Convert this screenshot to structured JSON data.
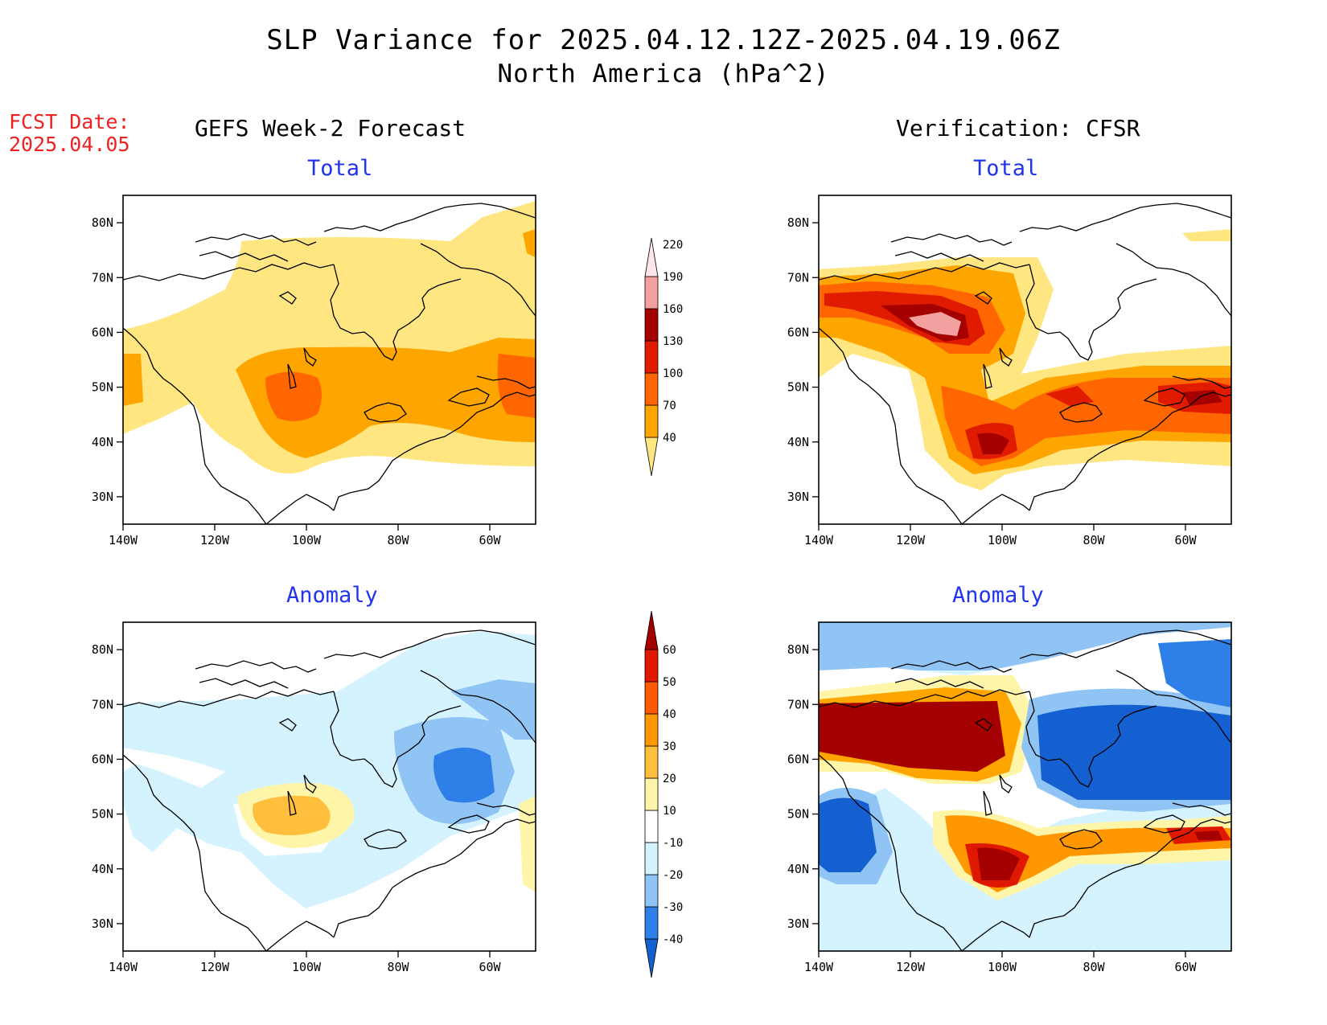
{
  "header": {
    "title_line1": "SLP Variance for 2025.04.12.12Z-2025.04.19.06Z",
    "title_line2": "North America (hPa^2)",
    "fcst_label": "FCST Date:",
    "fcst_date": "2025.04.05"
  },
  "columns": {
    "left": "GEFS Week-2 Forecast",
    "right": "Verification: CFSR"
  },
  "panel_titles": {
    "top_left": "Total",
    "top_right": "Total",
    "bottom_left": "Anomaly",
    "bottom_right": "Anomaly"
  },
  "axes": {
    "lat_ticks": [
      "80N",
      "70N",
      "60N",
      "50N",
      "40N",
      "30N"
    ],
    "lon_ticks": [
      "140W",
      "120W",
      "100W",
      "80W",
      "60W"
    ]
  },
  "colorbars": {
    "total": {
      "levels": [
        "40",
        "70",
        "100",
        "130",
        "160",
        "190",
        "220"
      ],
      "colors": [
        "#ffe680",
        "#ffa500",
        "#ff6600",
        "#e11b00",
        "#a50000",
        "#f2a0a0",
        "#ffe6e6"
      ]
    },
    "anomaly": {
      "levels": [
        "-40",
        "-30",
        "-20",
        "-10",
        "10",
        "20",
        "30",
        "40",
        "50",
        "60"
      ],
      "colors": [
        "#1560d0",
        "#2f7fe8",
        "#8fc4f5",
        "#d4f3ff",
        "#ffffff",
        "#fff5a8",
        "#ffbe3c",
        "#ff9800",
        "#ff5a00",
        "#e11800",
        "#a50000"
      ]
    }
  }
}
